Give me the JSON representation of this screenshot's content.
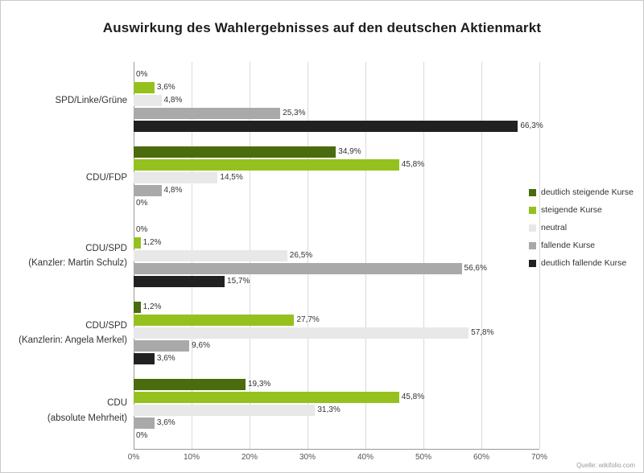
{
  "chart_data": {
    "type": "bar",
    "orientation": "horizontal",
    "title": "Auswirkung des Wahlergebnisses auf den deutschen Aktienmarkt",
    "source": "Quelle: wikifolio.com",
    "xlim": [
      0,
      70
    ],
    "xticks": [
      "0%",
      "10%",
      "20%",
      "30%",
      "40%",
      "50%",
      "60%",
      "70%"
    ],
    "grid": "vertical",
    "legend_position": "right",
    "background": "#ffffff",
    "categories": [
      {
        "label_lines": [
          "SPD/Linke/Grüne"
        ]
      },
      {
        "label_lines": [
          "CDU/FDP"
        ]
      },
      {
        "label_lines": [
          "CDU/SPD",
          "(Kanzler: Martin Schulz)"
        ]
      },
      {
        "label_lines": [
          "CDU/SPD",
          "(Kanzlerin: Angela Merkel)"
        ]
      },
      {
        "label_lines": [
          "CDU",
          "(absolute Mehrheit)"
        ]
      }
    ],
    "series": [
      {
        "name": "deutlich steigende Kurse",
        "color": "#4a6b0e",
        "values": [
          0,
          34.9,
          0,
          1.2,
          19.3
        ],
        "labels": [
          "0%",
          "34,9%",
          "0%",
          "1,2%",
          "19,3%"
        ]
      },
      {
        "name": "steigende Kurse",
        "color": "#95c11f",
        "values": [
          3.6,
          45.8,
          1.2,
          27.7,
          45.8
        ],
        "labels": [
          "3,6%",
          "45,8%",
          "1,2%",
          "27,7%",
          "45,8%"
        ]
      },
      {
        "name": "neutral",
        "color": "#e8e8e8",
        "values": [
          4.8,
          14.5,
          26.5,
          57.8,
          31.3
        ],
        "labels": [
          "4,8%",
          "14,5%",
          "26,5%",
          "57,8%",
          "31,3%"
        ]
      },
      {
        "name": "fallende Kurse",
        "color": "#a9a9a9",
        "values": [
          25.3,
          4.8,
          56.6,
          9.6,
          3.6
        ],
        "labels": [
          "25,3%",
          "4,8%",
          "56,6%",
          "9,6%",
          "3,6%"
        ]
      },
      {
        "name": "deutlich fallende Kurse",
        "color": "#212121",
        "values": [
          66.3,
          0,
          15.7,
          3.6,
          0
        ],
        "labels": [
          "66,3%",
          "0%",
          "15,7%",
          "3,6%",
          "0%"
        ]
      }
    ]
  }
}
